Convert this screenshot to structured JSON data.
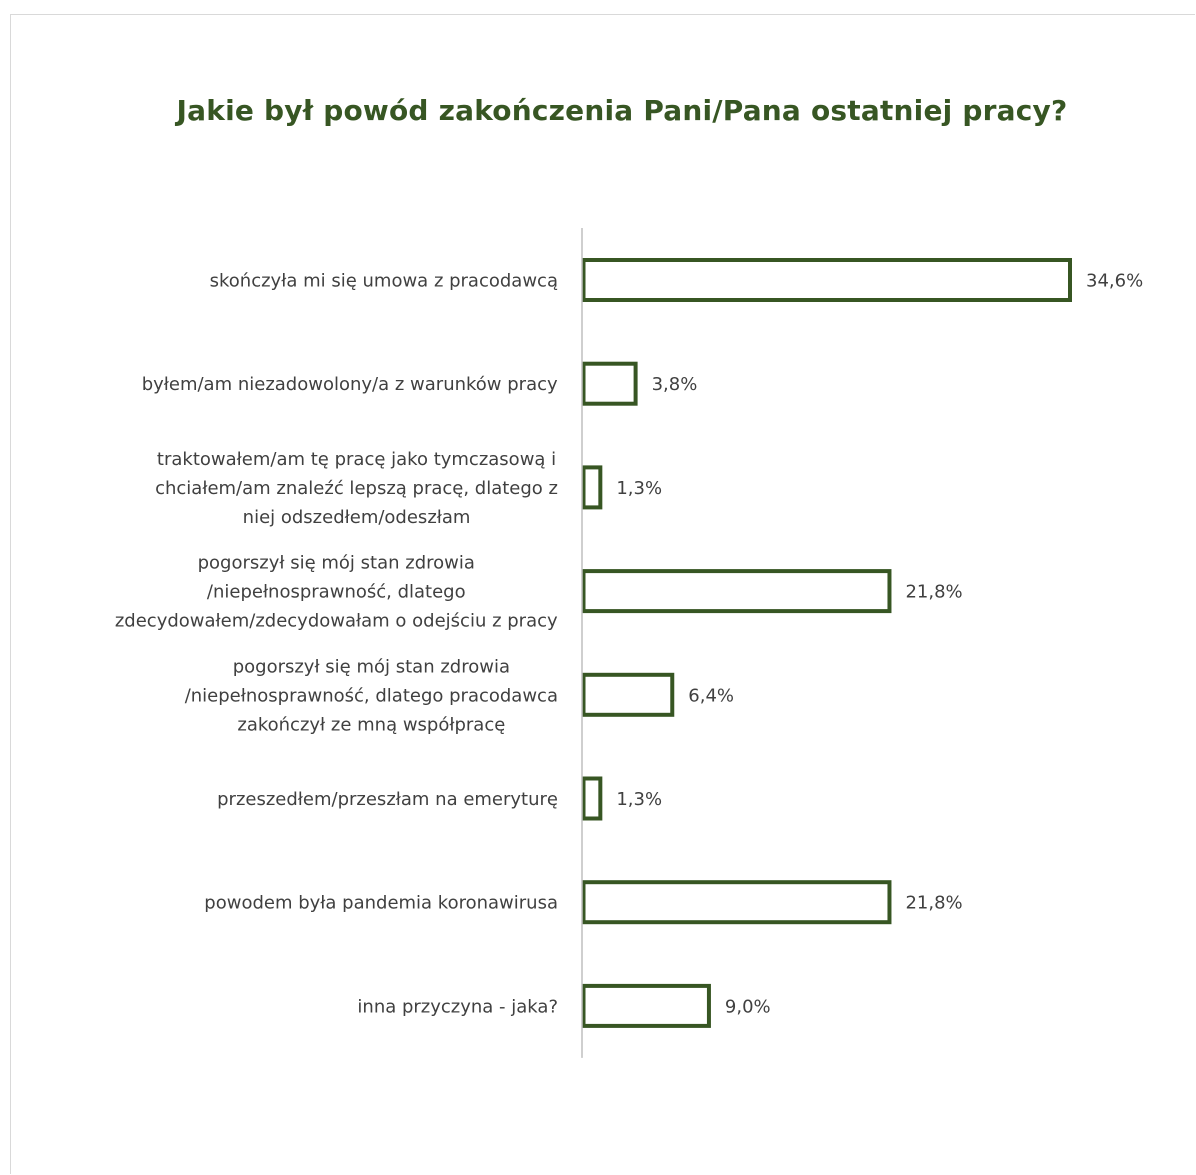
{
  "chart_data": {
    "type": "bar",
    "orientation": "horizontal",
    "title": "Jakie był powód zakończenia Pani/Pana ostatniej pracy?",
    "xlabel": "",
    "ylabel": "",
    "grid": false,
    "legend": "none",
    "xlim": [
      0,
      34.6
    ],
    "categories": [
      "skończyła mi się umowa z pracodawcą",
      "byłem/am niezadowolony/a z warunków pracy",
      "traktowałem/am tę pracę jako tymczasową i chciałem/am znaleźć lepszą pracę, dlatego z niej odszedłem/odeszłam",
      "pogorszył się mój stan zdrowia /niepełnosprawność, dlatego zdecydowałem/zdecydowałam o odejściu z pracy",
      "pogorszył się mój stan zdrowia /niepełnosprawność, dlatego pracodawca zakończył ze mną współpracę",
      "przeszedłem/przeszłam na emeryturę",
      "powodem była pandemia koronawirusa",
      "inna przyczyna - jaka?"
    ],
    "category_lines": [
      [
        "skończyła mi się umowa z pracodawcą"
      ],
      [
        "byłem/am niezadowolony/a z warunków pracy"
      ],
      [
        "traktowałem/am tę pracę jako tymczasową i",
        "chciałem/am znaleźć lepszą pracę, dlatego z",
        "niej odszedłem/odeszłam"
      ],
      [
        "pogorszył się mój stan zdrowia",
        "/niepełnosprawność, dlatego",
        "zdecydowałem/zdecydowałam o odejściu z pracy"
      ],
      [
        "pogorszył się mój stan zdrowia",
        "/niepełnosprawność, dlatego pracodawca",
        "zakończył ze mną współpracę"
      ],
      [
        "przeszedłem/przeszłam na emeryturę"
      ],
      [
        "powodem była pandemia koronawirusa"
      ],
      [
        "inna przyczyna - jaka?"
      ]
    ],
    "values": [
      34.6,
      3.8,
      1.3,
      21.8,
      6.4,
      1.3,
      21.8,
      9.0
    ],
    "value_labels": [
      "34,6%",
      "3,8%",
      "1,3%",
      "21,8%",
      "6,4%",
      "1,3%",
      "21,8%",
      "9,0%"
    ],
    "colors": {
      "bar_stroke": "#375623",
      "bar_fill": "#ffffff",
      "title": "#375623",
      "text": "#404040",
      "axis": "#bfbfbf"
    }
  }
}
